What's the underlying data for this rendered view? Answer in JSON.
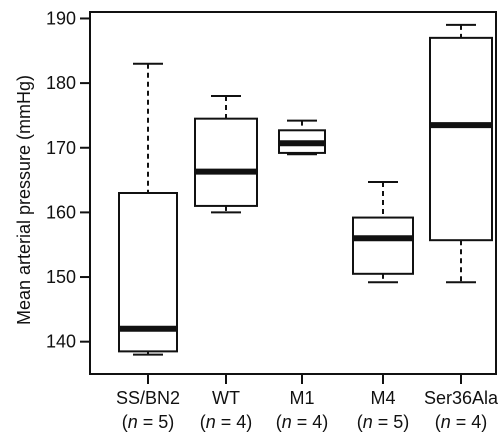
{
  "chart_data": {
    "type": "boxplot",
    "title": "",
    "xlabel": "",
    "ylabel": "Mean arterial pressure (mmHg)",
    "ylim": [
      135,
      191
    ],
    "yticks": [
      140,
      150,
      160,
      170,
      180,
      190
    ],
    "categories": [
      {
        "label": "SS/BN2",
        "n_label": "n",
        "n_value": "= 5"
      },
      {
        "label": "WT",
        "n_label": "n",
        "n_value": "= 4"
      },
      {
        "label": "M1",
        "n_label": "n",
        "n_value": "= 4"
      },
      {
        "label": "M4",
        "n_label": "n",
        "n_value": "= 5"
      },
      {
        "label": "Ser36Ala",
        "n_label": "n",
        "n_value": "= 4"
      }
    ],
    "boxes": [
      {
        "whisker_low": 138,
        "q1": 138.5,
        "median": 142,
        "q3": 163,
        "whisker_high": 183
      },
      {
        "whisker_low": 160,
        "q1": 161,
        "median": 166.3,
        "q3": 174.5,
        "whisker_high": 178
      },
      {
        "whisker_low": 169,
        "q1": 169.2,
        "median": 170.7,
        "q3": 172.7,
        "whisker_high": 174.2
      },
      {
        "whisker_low": 149.2,
        "q1": 150.5,
        "median": 156,
        "q3": 159.2,
        "whisker_high": 164.7
      },
      {
        "whisker_low": 149.2,
        "q1": 155.7,
        "median": 173.5,
        "q3": 187,
        "whisker_high": 189
      }
    ],
    "grid": false,
    "legend": "none",
    "colors": {
      "stroke": "#111111",
      "fill": "#ffffff"
    }
  }
}
